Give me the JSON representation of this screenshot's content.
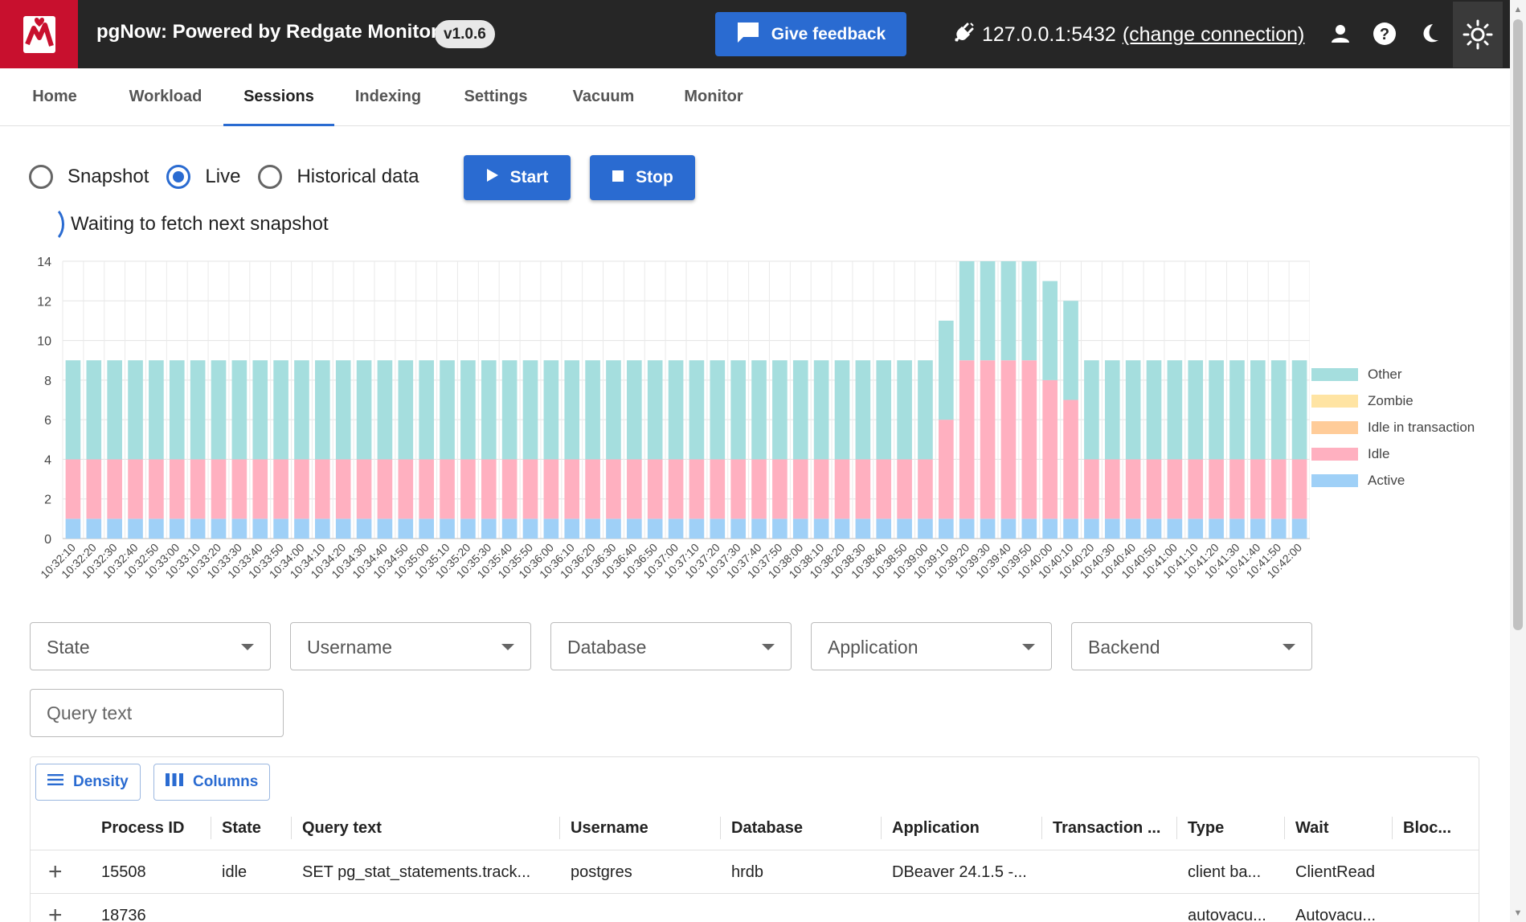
{
  "header": {
    "title": "pgNow: Powered by Redgate Monitor",
    "version": "v1.0.6",
    "feedback_label": "Give feedback",
    "connection_host": "127.0.0.1:5432",
    "connection_link": "(change connection)",
    "icons": [
      "logo-icon",
      "feedback-icon",
      "plug-icon",
      "user-icon",
      "help-icon",
      "dark-mode-icon",
      "light-mode-icon"
    ]
  },
  "tabs": [
    {
      "label": "Home"
    },
    {
      "label": "Workload"
    },
    {
      "label": "Sessions",
      "active": true
    },
    {
      "label": "Indexing"
    },
    {
      "label": "Settings"
    },
    {
      "label": "Vacuum"
    },
    {
      "label": "Monitor"
    }
  ],
  "mode": {
    "options": [
      {
        "label": "Snapshot",
        "checked": false
      },
      {
        "label": "Live",
        "checked": true
      },
      {
        "label": "Historical data",
        "checked": false
      }
    ],
    "start_label": "Start",
    "stop_label": "Stop",
    "status": "Waiting to fetch next snapshot"
  },
  "colors": {
    "accent": "#2a6bd1",
    "brand": "#c8102e",
    "active": "#9fd0f7",
    "idle": "#ffb0c0",
    "idle_in_transaction": "#ffcc99",
    "zombie": "#ffe4a3",
    "other": "#a5dede"
  },
  "chart_data": {
    "type": "bar",
    "stacked": true,
    "ylim": [
      0,
      14
    ],
    "yticks": [
      0,
      2,
      4,
      6,
      8,
      10,
      12,
      14
    ],
    "grid": true,
    "legend_position": "right",
    "categories": [
      "10:32:10",
      "10:32:20",
      "10:32:30",
      "10:32:40",
      "10:32:50",
      "10:33:00",
      "10:33:10",
      "10:33:20",
      "10:33:30",
      "10:33:40",
      "10:33:50",
      "10:34:00",
      "10:34:10",
      "10:34:20",
      "10:34:30",
      "10:34:40",
      "10:34:50",
      "10:35:00",
      "10:35:10",
      "10:35:20",
      "10:35:30",
      "10:35:40",
      "10:35:50",
      "10:36:00",
      "10:36:10",
      "10:36:20",
      "10:36:30",
      "10:36:40",
      "10:36:50",
      "10:37:00",
      "10:37:10",
      "10:37:20",
      "10:37:30",
      "10:37:40",
      "10:37:50",
      "10:38:00",
      "10:38:10",
      "10:38:20",
      "10:38:30",
      "10:38:40",
      "10:38:50",
      "10:39:00",
      "10:39:10",
      "10:39:20",
      "10:39:30",
      "10:39:40",
      "10:39:50",
      "10:40:00",
      "10:40:10",
      "10:40:20",
      "10:40:30",
      "10:40:40",
      "10:40:50",
      "10:41:00",
      "10:41:10",
      "10:41:20",
      "10:41:30",
      "10:41:40",
      "10:41:50",
      "10:42:00"
    ],
    "series": [
      {
        "name": "Active",
        "color": "#9fd0f7",
        "values": [
          1,
          1,
          1,
          1,
          1,
          1,
          1,
          1,
          1,
          1,
          1,
          1,
          1,
          1,
          1,
          1,
          1,
          1,
          1,
          1,
          1,
          1,
          1,
          1,
          1,
          1,
          1,
          1,
          1,
          1,
          1,
          1,
          1,
          1,
          1,
          1,
          1,
          1,
          1,
          1,
          1,
          1,
          1,
          1,
          1,
          1,
          1,
          1,
          1,
          1,
          1,
          1,
          1,
          1,
          1,
          1,
          1,
          1,
          1,
          1
        ]
      },
      {
        "name": "Idle",
        "color": "#ffb0c0",
        "values": [
          3,
          3,
          3,
          3,
          3,
          3,
          3,
          3,
          3,
          3,
          3,
          3,
          3,
          3,
          3,
          3,
          3,
          3,
          3,
          3,
          3,
          3,
          3,
          3,
          3,
          3,
          3,
          3,
          3,
          3,
          3,
          3,
          3,
          3,
          3,
          3,
          3,
          3,
          3,
          3,
          3,
          3,
          5,
          8,
          8,
          8,
          8,
          7,
          6,
          3,
          3,
          3,
          3,
          3,
          3,
          3,
          3,
          3,
          3,
          3
        ]
      },
      {
        "name": "Idle in transaction",
        "color": "#ffcc99",
        "values": [
          0,
          0,
          0,
          0,
          0,
          0,
          0,
          0,
          0,
          0,
          0,
          0,
          0,
          0,
          0,
          0,
          0,
          0,
          0,
          0,
          0,
          0,
          0,
          0,
          0,
          0,
          0,
          0,
          0,
          0,
          0,
          0,
          0,
          0,
          0,
          0,
          0,
          0,
          0,
          0,
          0,
          0,
          0,
          0,
          0,
          0,
          0,
          0,
          0,
          0,
          0,
          0,
          0,
          0,
          0,
          0,
          0,
          0,
          0,
          0
        ]
      },
      {
        "name": "Zombie",
        "color": "#ffe4a3",
        "values": [
          0,
          0,
          0,
          0,
          0,
          0,
          0,
          0,
          0,
          0,
          0,
          0,
          0,
          0,
          0,
          0,
          0,
          0,
          0,
          0,
          0,
          0,
          0,
          0,
          0,
          0,
          0,
          0,
          0,
          0,
          0,
          0,
          0,
          0,
          0,
          0,
          0,
          0,
          0,
          0,
          0,
          0,
          0,
          0,
          0,
          0,
          0,
          0,
          0,
          0,
          0,
          0,
          0,
          0,
          0,
          0,
          0,
          0,
          0,
          0
        ]
      },
      {
        "name": "Other",
        "color": "#a5dede",
        "values": [
          5,
          5,
          5,
          5,
          5,
          5,
          5,
          5,
          5,
          5,
          5,
          5,
          5,
          5,
          5,
          5,
          5,
          5,
          5,
          5,
          5,
          5,
          5,
          5,
          5,
          5,
          5,
          5,
          5,
          5,
          5,
          5,
          5,
          5,
          5,
          5,
          5,
          5,
          5,
          5,
          5,
          5,
          5,
          5,
          5,
          5,
          5,
          5,
          5,
          5,
          5,
          5,
          5,
          5,
          5,
          5,
          5,
          5,
          5,
          5
        ]
      }
    ]
  },
  "legend": [
    "Other",
    "Zombie",
    "Idle in transaction",
    "Idle",
    "Active"
  ],
  "filters": {
    "state": "State",
    "username": "Username",
    "database": "Database",
    "application": "Application",
    "backend": "Backend",
    "query_placeholder": "Query text"
  },
  "grid": {
    "density_label": "Density",
    "columns_label": "Columns",
    "columns": [
      "Process ID",
      "State",
      "Query text",
      "Username",
      "Database",
      "Application",
      "Transaction ...",
      "Type",
      "Wait",
      "Bloc..."
    ],
    "rows": [
      [
        "15508",
        "idle",
        "SET pg_stat_statements.track...",
        "postgres",
        "hrdb",
        "DBeaver 24.1.5 -...",
        "",
        "client ba...",
        "ClientRead",
        ""
      ],
      [
        "18736",
        "",
        "",
        "",
        "",
        "",
        "",
        "autovacu...",
        "Autovacu...",
        ""
      ]
    ]
  }
}
